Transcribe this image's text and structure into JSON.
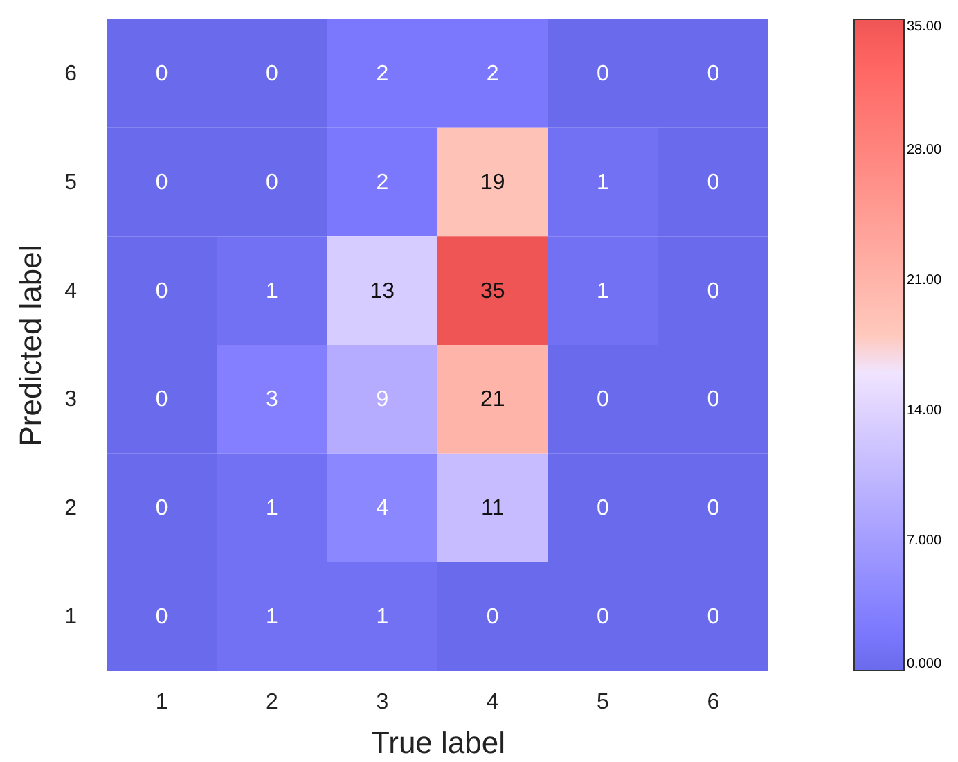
{
  "chart_data": {
    "type": "heatmap",
    "xlabel": "True label",
    "ylabel": "Predicted label",
    "categories": [
      "1",
      "2",
      "3",
      "4",
      "5",
      "6"
    ],
    "y_categories": [
      "6",
      "5",
      "4",
      "3",
      "2",
      "1"
    ],
    "cells": [
      [
        0,
        0,
        2,
        2,
        0,
        0
      ],
      [
        0,
        0,
        2,
        19,
        1,
        0
      ],
      [
        0,
        1,
        13,
        35,
        1,
        0
      ],
      [
        0,
        3,
        9,
        21,
        0,
        0
      ],
      [
        0,
        1,
        4,
        11,
        0,
        0
      ],
      [
        0,
        1,
        1,
        0,
        0,
        0
      ]
    ],
    "clim": [
      0,
      35
    ],
    "cticks": [
      {
        "value": 0,
        "label": "0.000"
      },
      {
        "value": 7,
        "label": "7.000"
      },
      {
        "value": 14,
        "label": "14.00"
      },
      {
        "value": 21,
        "label": "21.00"
      },
      {
        "value": 28,
        "label": "28.00"
      },
      {
        "value": 35,
        "label": "35.00"
      }
    ],
    "data_labels": true
  }
}
